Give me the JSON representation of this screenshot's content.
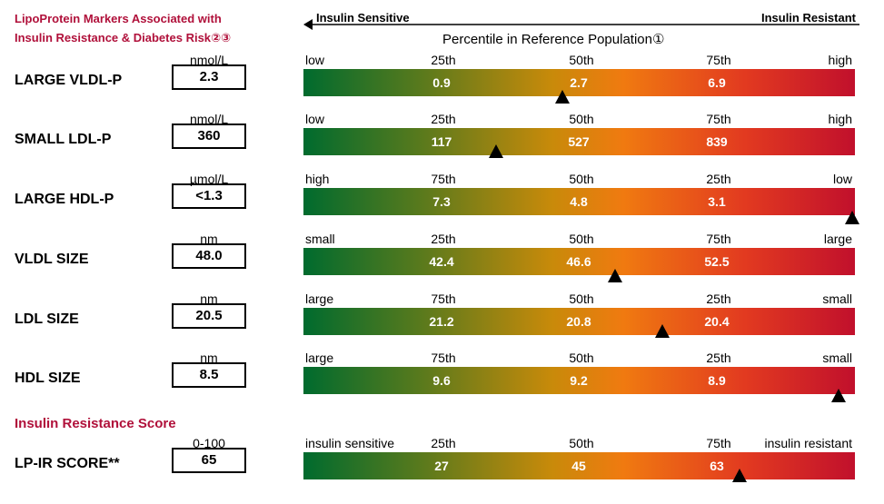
{
  "title_line1": "LipoProtein Markers Associated with",
  "title_line2": "Insulin Resistance & Diabetes Risk②③",
  "axis": {
    "left_label": "Insulin Sensitive",
    "right_label": "Insulin Resistant",
    "heading": "Percentile in Reference Population①"
  },
  "score_heading": "Insulin Resistance Score",
  "rows": [
    {
      "name": "LARGE VLDL-P",
      "unit": "nmol/L",
      "value": "2.3",
      "ticks": [
        "low",
        "25th",
        "50th",
        "75th",
        "high"
      ],
      "bar_values": [
        "0.9",
        "2.7",
        "6.9"
      ],
      "marker_fraction": 0.47
    },
    {
      "name": "SMALL LDL-P",
      "unit": "nmol/L",
      "value": "360",
      "ticks": [
        "low",
        "25th",
        "50th",
        "75th",
        "high"
      ],
      "bar_values": [
        "117",
        "527",
        "839"
      ],
      "marker_fraction": 0.35
    },
    {
      "name": "LARGE HDL-P",
      "unit": "µmol/L",
      "value": "<1.3",
      "ticks": [
        "high",
        "75th",
        "50th",
        "25th",
        "low"
      ],
      "bar_values": [
        "7.3",
        "4.8",
        "3.1"
      ],
      "marker_fraction": 0.995
    },
    {
      "name": "VLDL SIZE",
      "unit": "nm",
      "value": "48.0",
      "ticks": [
        "small",
        "25th",
        "50th",
        "75th",
        "large"
      ],
      "bar_values": [
        "42.4",
        "46.6",
        "52.5"
      ],
      "marker_fraction": 0.565
    },
    {
      "name": "LDL SIZE",
      "unit": "nm",
      "value": "20.5",
      "ticks": [
        "large",
        "75th",
        "50th",
        "25th",
        "small"
      ],
      "bar_values": [
        "21.2",
        "20.8",
        "20.4"
      ],
      "marker_fraction": 0.65
    },
    {
      "name": "HDL SIZE",
      "unit": "nm",
      "value": "8.5",
      "ticks": [
        "large",
        "75th",
        "50th",
        "25th",
        "small"
      ],
      "bar_values": [
        "9.6",
        "9.2",
        "8.9"
      ],
      "marker_fraction": 0.97
    },
    {
      "name": "LP-IR SCORE**",
      "unit": "0-100",
      "value": "65",
      "ticks": [
        "insulin sensitive",
        "25th",
        "50th",
        "75th",
        "insulin resistant"
      ],
      "bar_values": [
        "27",
        "45",
        "63"
      ],
      "marker_fraction": 0.79
    }
  ]
}
